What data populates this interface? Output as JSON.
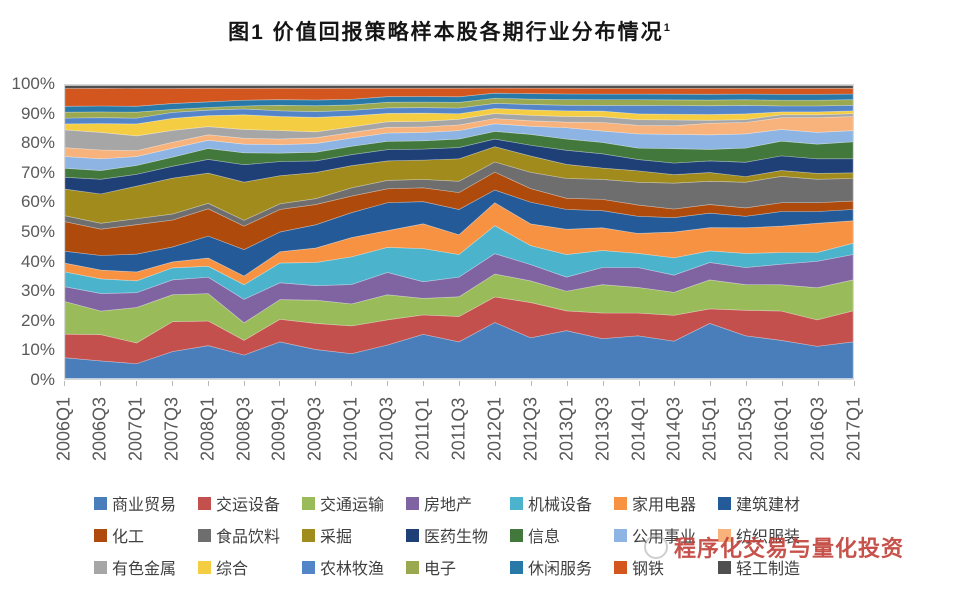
{
  "title": {
    "text": "图1  价值回报策略样本股各期行业分布情况",
    "superscript": "1"
  },
  "watermark": {
    "text": "程序化交易与量化投资"
  },
  "chart_data": {
    "type": "area",
    "subtype": "stacked-100-percent",
    "title": "图1  价值回报策略样本股各期行业分布情况",
    "xlabel": "",
    "ylabel": "",
    "ylim": [
      0,
      100
    ],
    "grid": false,
    "legend_position": "bottom",
    "y_ticks": [
      "100%",
      "90%",
      "80%",
      "70%",
      "60%",
      "50%",
      "40%",
      "30%",
      "20%",
      "10%",
      "0%"
    ],
    "categories": [
      "2006Q1",
      "2006Q3",
      "2007Q1",
      "2007Q3",
      "2008Q1",
      "2008Q3",
      "2009Q1",
      "2009Q3",
      "2010Q1",
      "2010Q3",
      "2011Q1",
      "2011Q3",
      "2012Q1",
      "2012Q3",
      "2013Q1",
      "2013Q3",
      "2014Q1",
      "2014Q3",
      "2015Q1",
      "2015Q3",
      "2016Q1",
      "2016Q3",
      "2017Q1"
    ],
    "unit": "percent-share-estimated",
    "series": [
      {
        "name": "商业贸易",
        "color": "#4A7EBB",
        "values": [
          7,
          6,
          5,
          9,
          12,
          8,
          13,
          10,
          9,
          12,
          16,
          13,
          22,
          15,
          17,
          14,
          15,
          13,
          19,
          15,
          13,
          11,
          13
        ]
      },
      {
        "name": "交运设备",
        "color": "#C4504D",
        "values": [
          8,
          9,
          7,
          10,
          9,
          5,
          8,
          9,
          10,
          9,
          7,
          9,
          10,
          13,
          7,
          9,
          8,
          9,
          5,
          9,
          10,
          9,
          11
        ]
      },
      {
        "name": "交通运输",
        "color": "#9ABB59",
        "values": [
          11,
          8,
          12,
          9,
          10,
          6,
          7,
          8,
          8,
          9,
          6,
          7,
          9,
          8,
          7,
          10,
          9,
          8,
          10,
          9,
          9,
          11,
          11
        ]
      },
      {
        "name": "房地产",
        "color": "#8064A2",
        "values": [
          5,
          6,
          5,
          5,
          6,
          8,
          6,
          5,
          7,
          8,
          6,
          7,
          8,
          6,
          5,
          6,
          7,
          6,
          6,
          6,
          7,
          9,
          9
        ]
      },
      {
        "name": "机械设备",
        "color": "#4BB4CC",
        "values": [
          5,
          5,
          4,
          4,
          4,
          5,
          7,
          8,
          10,
          9,
          12,
          8,
          11,
          7,
          8,
          6,
          5,
          6,
          4,
          5,
          4,
          3,
          4
        ]
      },
      {
        "name": "家用电器",
        "color": "#F79243",
        "values": [
          3,
          3,
          3,
          2,
          3,
          3,
          4,
          5,
          7,
          6,
          9,
          7,
          9,
          8,
          9,
          8,
          7,
          9,
          8,
          9,
          9,
          10,
          8
        ]
      },
      {
        "name": "建筑建材",
        "color": "#235A97",
        "values": [
          4,
          5,
          6,
          5,
          8,
          9,
          7,
          8,
          9,
          10,
          8,
          9,
          5,
          8,
          7,
          6,
          6,
          5,
          5,
          4,
          5,
          4,
          4
        ]
      },
      {
        "name": "化工",
        "color": "#AE4B0C",
        "values": [
          10,
          9,
          10,
          9,
          10,
          8,
          8,
          7,
          6,
          5,
          5,
          6,
          7,
          5,
          4,
          4,
          4,
          3,
          3,
          3,
          3,
          3,
          3
        ]
      },
      {
        "name": "食品饮料",
        "color": "#6E6E6E",
        "values": [
          2,
          2,
          2,
          2,
          2,
          2,
          2,
          2,
          3,
          3,
          3,
          4,
          4,
          6,
          7,
          7,
          8,
          9,
          8,
          9,
          9,
          8,
          8
        ]
      },
      {
        "name": "采掘",
        "color": "#A08B1C",
        "values": [
          9,
          10,
          11,
          12,
          11,
          13,
          10,
          9,
          8,
          7,
          7,
          8,
          6,
          6,
          5,
          4,
          4,
          3,
          3,
          2,
          2,
          2,
          2
        ]
      },
      {
        "name": "医药生物",
        "color": "#1F4077",
        "values": [
          4,
          5,
          4,
          4,
          5,
          6,
          5,
          4,
          4,
          4,
          4,
          4,
          3,
          4,
          5,
          5,
          4,
          4,
          4,
          5,
          5,
          5,
          5
        ]
      },
      {
        "name": "信息",
        "color": "#42783C",
        "values": [
          3,
          3,
          3,
          3,
          4,
          4,
          3,
          3,
          3,
          3,
          3,
          3,
          3,
          4,
          4,
          4,
          4,
          5,
          4,
          5,
          5,
          5,
          6
        ]
      },
      {
        "name": "公用事业",
        "color": "#8DB4E2",
        "values": [
          4,
          4,
          3,
          3,
          3,
          3,
          3,
          3,
          3,
          3,
          3,
          3,
          3,
          3,
          4,
          4,
          5,
          5,
          5,
          5,
          4,
          4,
          4
        ]
      },
      {
        "name": "纺织服装",
        "color": "#F8B27B",
        "values": [
          3,
          3,
          2,
          2,
          2,
          2,
          2,
          2,
          2,
          2,
          2,
          2,
          2,
          2,
          2,
          3,
          3,
          3,
          4,
          4,
          4,
          5,
          5
        ]
      },
      {
        "name": "有色金属",
        "color": "#A6A6A6",
        "values": [
          6,
          6,
          5,
          4,
          3,
          3,
          3,
          2,
          2,
          2,
          2,
          2,
          2,
          2,
          2,
          2,
          2,
          2,
          1,
          1,
          1,
          1,
          1
        ]
      },
      {
        "name": "综合",
        "color": "#F5CD42",
        "values": [
          2,
          3,
          4,
          4,
          4,
          5,
          5,
          5,
          4,
          3,
          3,
          2,
          2,
          2,
          2,
          2,
          2,
          2,
          2,
          2,
          1,
          1,
          1
        ]
      },
      {
        "name": "农林牧渔",
        "color": "#5585C9",
        "values": [
          2,
          2,
          2,
          2,
          2,
          2,
          2,
          2,
          2,
          2,
          2,
          2,
          2,
          2,
          2,
          2,
          3,
          3,
          3,
          3,
          2,
          2,
          2
        ]
      },
      {
        "name": "电子",
        "color": "#9AA84F",
        "values": [
          2,
          2,
          2,
          1,
          1,
          1,
          2,
          2,
          2,
          2,
          2,
          2,
          2,
          2,
          2,
          2,
          2,
          2,
          2,
          2,
          2,
          2,
          2
        ]
      },
      {
        "name": "休闲服务",
        "color": "#2878A8",
        "values": [
          2,
          2,
          2,
          2,
          2,
          2,
          2,
          2,
          2,
          2,
          2,
          2,
          2,
          2,
          2,
          2,
          2,
          2,
          2,
          2,
          2,
          2,
          2
        ]
      },
      {
        "name": "钢铁",
        "color": "#D2561E",
        "values": [
          6,
          6,
          6,
          5,
          5,
          4,
          4,
          4,
          4,
          3,
          3,
          3,
          2,
          2,
          2,
          2,
          2,
          2,
          2,
          2,
          2,
          2,
          2
        ]
      },
      {
        "name": "轻工制造",
        "color": "#4F4F4F",
        "values": [
          1,
          1,
          1,
          1,
          1,
          1,
          1,
          1,
          1,
          1,
          1,
          1,
          1,
          1,
          1,
          1,
          1,
          1,
          1,
          1,
          1,
          1,
          1
        ]
      }
    ]
  }
}
